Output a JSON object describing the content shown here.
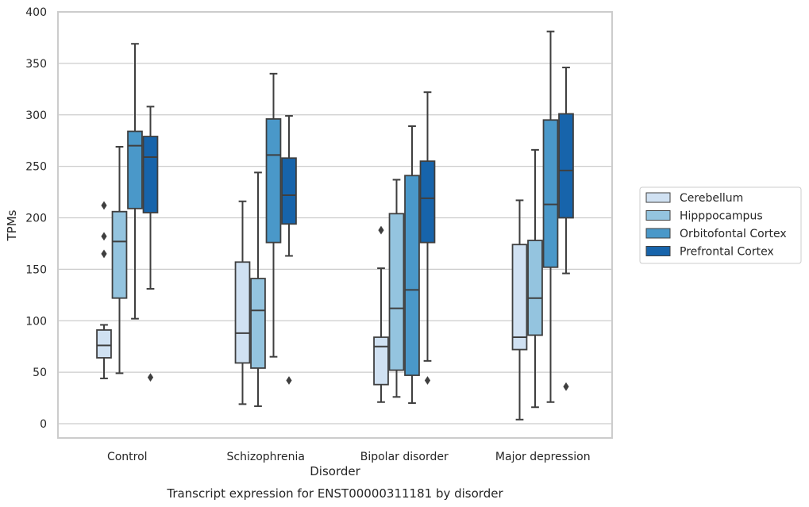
{
  "chart_data": {
    "type": "box",
    "title": "",
    "caption": "Transcript expression for ENST00000311181 by disorder",
    "xlabel": "Disorder",
    "ylabel": "TPMs",
    "ylim": [
      -15,
      400
    ],
    "yticks": [
      0,
      50,
      100,
      150,
      200,
      250,
      300,
      350,
      400
    ],
    "grid": "horizontal",
    "legend_position": "right-outside",
    "categories": [
      "Control",
      "Schizophrenia",
      "Bipolar disorder",
      "Major depression"
    ],
    "series": [
      {
        "name": "Cerebellum",
        "color": "#d0e1f2",
        "boxes": [
          {
            "whisker_low": 44,
            "q1": 64,
            "median": 76,
            "q3": 91,
            "whisker_high": 96,
            "outliers": [
              165,
              182,
              212
            ]
          },
          {
            "whisker_low": 19,
            "q1": 59,
            "median": 88,
            "q3": 157,
            "whisker_high": 216,
            "outliers": []
          },
          {
            "whisker_low": 21,
            "q1": 38,
            "median": 75,
            "q3": 84,
            "whisker_high": 151,
            "outliers": [
              188
            ]
          },
          {
            "whisker_low": 4,
            "q1": 72,
            "median": 84,
            "q3": 174,
            "whisker_high": 217,
            "outliers": []
          }
        ]
      },
      {
        "name": "Hipppocampus",
        "color": "#94c4df",
        "boxes": [
          {
            "whisker_low": 49,
            "q1": 122,
            "median": 177,
            "q3": 206,
            "whisker_high": 269,
            "outliers": []
          },
          {
            "whisker_low": 17,
            "q1": 54,
            "median": 110,
            "q3": 141,
            "whisker_high": 244,
            "outliers": []
          },
          {
            "whisker_low": 26,
            "q1": 52,
            "median": 112,
            "q3": 204,
            "whisker_high": 237,
            "outliers": []
          },
          {
            "whisker_low": 16,
            "q1": 86,
            "median": 122,
            "q3": 178,
            "whisker_high": 266,
            "outliers": []
          }
        ]
      },
      {
        "name": "Orbitofontal Cortex",
        "color": "#4a98c9",
        "boxes": [
          {
            "whisker_low": 102,
            "q1": 209,
            "median": 270,
            "q3": 284,
            "whisker_high": 369,
            "outliers": []
          },
          {
            "whisker_low": 65,
            "q1": 176,
            "median": 261,
            "q3": 296,
            "whisker_high": 340,
            "outliers": []
          },
          {
            "whisker_low": 20,
            "q1": 47,
            "median": 130,
            "q3": 241,
            "whisker_high": 289,
            "outliers": []
          },
          {
            "whisker_low": 21,
            "q1": 152,
            "median": 213,
            "q3": 295,
            "whisker_high": 381,
            "outliers": []
          }
        ]
      },
      {
        "name": "Prefrontal Cortex",
        "color": "#1764ab",
        "boxes": [
          {
            "whisker_low": 131,
            "q1": 205,
            "median": 259,
            "q3": 279,
            "whisker_high": 308,
            "outliers": [
              45
            ]
          },
          {
            "whisker_low": 163,
            "q1": 194,
            "median": 222,
            "q3": 258,
            "whisker_high": 299,
            "outliers": [
              42
            ]
          },
          {
            "whisker_low": 61,
            "q1": 176,
            "median": 219,
            "q3": 255,
            "whisker_high": 322,
            "outliers": [
              42
            ]
          },
          {
            "whisker_low": 146,
            "q1": 200,
            "median": 246,
            "q3": 301,
            "whisker_high": 346,
            "outliers": [
              36
            ]
          }
        ]
      }
    ]
  }
}
